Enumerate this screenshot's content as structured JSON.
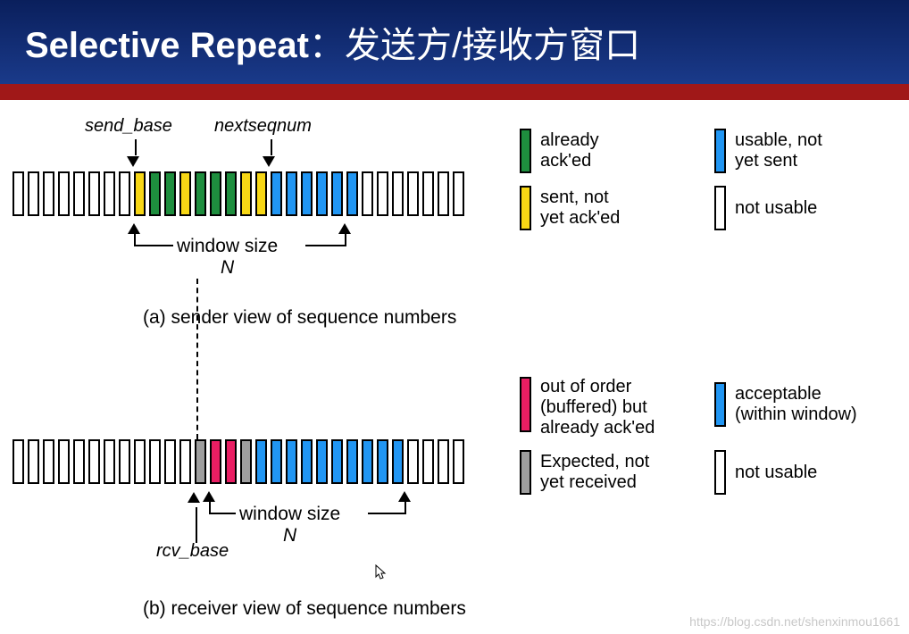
{
  "header": {
    "title_en": "Selective Repeat",
    "separator": "：",
    "title_cn": "发送方/接收方窗口"
  },
  "colors": {
    "green": "#1e8e3e",
    "yellow": "#f7d715",
    "blue": "#2196f3",
    "white": "#ffffff",
    "pink": "#e91e63",
    "gray": "#9e9e9e",
    "header_top": "#0a1f5c",
    "header_bottom": "#1a3a8a",
    "redbar": "#a01818"
  },
  "sender": {
    "labels": {
      "send_base": "send_base",
      "nextseqnum": "nextseqnum",
      "window": "window size",
      "N": "N"
    },
    "slots": [
      "white",
      "white",
      "white",
      "white",
      "white",
      "white",
      "white",
      "white",
      "yellow",
      "green",
      "green",
      "yellow",
      "green",
      "green",
      "green",
      "yellow",
      "yellow",
      "blue",
      "blue",
      "blue",
      "blue",
      "blue",
      "blue",
      "white",
      "white",
      "white",
      "white",
      "white",
      "white",
      "white"
    ],
    "window_start_idx": 8,
    "window_end_idx": 22,
    "caption": "(a) sender view of sequence numbers"
  },
  "receiver": {
    "labels": {
      "rcv_base": "rcv_base",
      "window": "window size",
      "N": "N"
    },
    "slots": [
      "white",
      "white",
      "white",
      "white",
      "white",
      "white",
      "white",
      "white",
      "white",
      "white",
      "white",
      "white",
      "gray",
      "pink",
      "pink",
      "gray",
      "blue",
      "blue",
      "blue",
      "blue",
      "blue",
      "blue",
      "blue",
      "blue",
      "blue",
      "blue",
      "white",
      "white",
      "white",
      "white"
    ],
    "window_start_idx": 12,
    "window_end_idx": 25,
    "caption": "(b) receiver view of sequence numbers"
  },
  "legend_sender": {
    "green": "already\nack'ed",
    "yellow": "sent, not\nyet ack'ed",
    "blue": "usable, not\nyet sent",
    "white": "not usable"
  },
  "legend_receiver": {
    "pink": "out of order\n(buffered) but\nalready ack'ed",
    "gray": "Expected,  not\nyet received",
    "blue": "acceptable\n(within window)",
    "white": "not usable"
  },
  "watermark": "https://blog.csdn.net/shenxinmou1661"
}
